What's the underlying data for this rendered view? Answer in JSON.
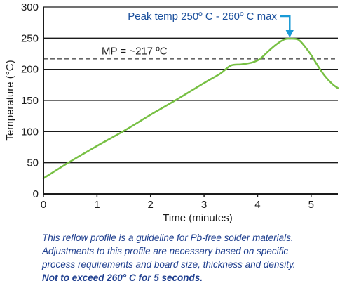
{
  "chart_data": {
    "type": "line",
    "xlabel": "Time (minutes)",
    "ylabel": "Temperature (°C)",
    "xlim": [
      0,
      5.5
    ],
    "ylim": [
      0,
      300
    ],
    "xticks": [
      "0",
      "1",
      "2",
      "3",
      "4",
      "5"
    ],
    "yticks": [
      "0",
      "50",
      "100",
      "150",
      "200",
      "250",
      "300"
    ],
    "grid": "horizontal",
    "series": [
      {
        "color": "#77c043",
        "x": [
          0,
          0.5,
          1.0,
          1.5,
          2.0,
          2.5,
          3.0,
          3.3,
          3.5,
          3.7,
          3.9,
          4.05,
          4.2,
          4.35,
          4.5,
          4.6,
          4.75,
          4.85,
          5.0,
          5.1,
          5.25,
          5.4,
          5.5
        ],
        "y": [
          25,
          52,
          77,
          101,
          127,
          152,
          178,
          193,
          206,
          208,
          211,
          217,
          229,
          240,
          248,
          249,
          248,
          240,
          223,
          209,
          190,
          176,
          170
        ]
      }
    ],
    "reference_line": {
      "y": 217,
      "label": "MP = ~217 ºC",
      "color": "#666666",
      "style": "dashed"
    },
    "annotation": {
      "text": "Peak temp 250º C - 260º C max",
      "x": 4.6,
      "y": 250,
      "color": "#1a9ad6"
    }
  },
  "caption": {
    "lines": [
      "This reflow profile is a guideline for Pb-free solder materials.",
      "Adjustments to this profile are necessary based on specific",
      "process requirements and board size, thickness and density."
    ],
    "emphasis": "Not to exceed 260°  C for 5 seconds."
  }
}
